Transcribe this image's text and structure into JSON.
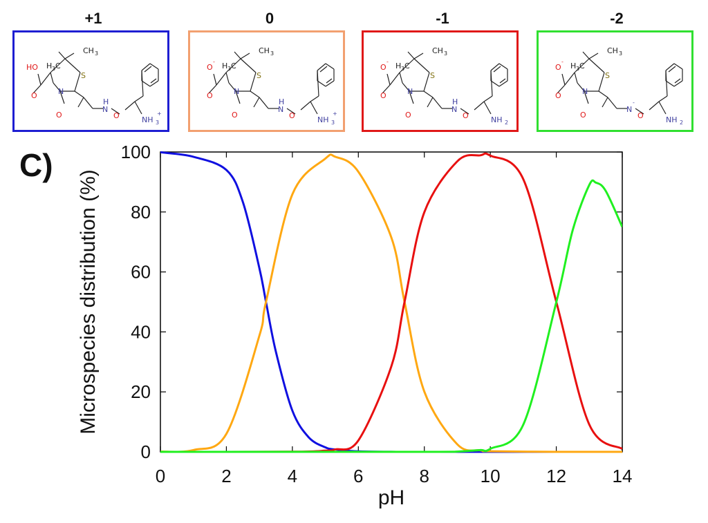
{
  "panel_letter": "C)",
  "species": [
    {
      "charge": "+1",
      "border_color": "#1e1ed2",
      "acid_group": "HO",
      "acid_charge": "",
      "linker_n": "N",
      "linker_h": "H",
      "linker_charge": "",
      "amine": "NH",
      "amine_sub": "3",
      "amine_charge": "+"
    },
    {
      "charge": "0",
      "border_color": "#f2a070",
      "acid_group": "O",
      "acid_charge": "-",
      "linker_n": "N",
      "linker_h": "H",
      "linker_charge": "",
      "amine": "NH",
      "amine_sub": "3",
      "amine_charge": "+"
    },
    {
      "charge": "-1",
      "border_color": "#e01818",
      "acid_group": "O",
      "acid_charge": "-",
      "linker_n": "N",
      "linker_h": "H",
      "linker_charge": "",
      "amine": "NH",
      "amine_sub": "2",
      "amine_charge": ""
    },
    {
      "charge": "-2",
      "border_color": "#30e030",
      "acid_group": "O",
      "acid_charge": "-",
      "linker_n": "N",
      "linker_h": "",
      "linker_charge": "-",
      "amine": "NH",
      "amine_sub": "2",
      "amine_charge": ""
    }
  ],
  "structure_labels": {
    "methyl": "CH",
    "methyl_sub": "3",
    "methyl2": "H",
    "methyl2_c": "C",
    "sulfur": "S",
    "ring_n": "N",
    "oxygen": "O"
  },
  "chart_data": {
    "type": "line",
    "xlabel": "pH",
    "ylabel": "Microspecies distribution  (%)",
    "xlim": [
      0,
      14
    ],
    "ylim": [
      0,
      100
    ],
    "xticks": [
      0,
      2,
      4,
      6,
      8,
      10,
      12,
      14
    ],
    "yticks": [
      0,
      20,
      40,
      60,
      80,
      100
    ],
    "grid": false,
    "pKa": [
      3.2,
      7.4,
      12.0
    ],
    "series": [
      {
        "charge": "+1",
        "color": "#1010e0",
        "x": [
          0,
          1,
          2,
          2.5,
          3,
          3.2,
          3.5,
          4,
          4.5,
          5,
          5.3,
          6,
          7,
          8,
          14
        ],
        "y": [
          99.9,
          98.4,
          94.0,
          83.3,
          61.3,
          50.0,
          33.4,
          13.7,
          4.8,
          1.5,
          0.8,
          0.15,
          0.02,
          0,
          0
        ]
      },
      {
        "charge": "0",
        "color": "#ffa812",
        "x": [
          0,
          1,
          2,
          3,
          3.2,
          4,
          5,
          5.3,
          6,
          7,
          7.4,
          8,
          9,
          9.7,
          10,
          12,
          14
        ],
        "y": [
          0.06,
          0.6,
          6.0,
          38.7,
          50.0,
          85.9,
          97.8,
          98.4,
          93.4,
          71.5,
          50.0,
          20.1,
          2.5,
          0.5,
          0.2,
          0,
          0
        ]
      },
      {
        "charge": "-1",
        "color": "#e81010",
        "x": [
          0,
          4,
          5,
          5.3,
          6,
          7,
          7.4,
          8,
          9,
          9.7,
          10,
          11,
          12,
          13,
          14
        ],
        "y": [
          0,
          0.04,
          0.4,
          0.8,
          3.8,
          28.5,
          50.0,
          79.9,
          96.9,
          98.9,
          98.8,
          90.9,
          50.0,
          9.1,
          1.0
        ]
      },
      {
        "charge": "-2",
        "color": "#20f020",
        "x": [
          0,
          8,
          9,
          9.7,
          10,
          11,
          12,
          12.5,
          13,
          13.2,
          13.5,
          14
        ],
        "y": [
          0,
          0,
          0.1,
          0.6,
          1.0,
          9.1,
          49.9,
          74.0,
          89.0,
          89.8,
          87.0,
          75.0
        ]
      }
    ]
  }
}
